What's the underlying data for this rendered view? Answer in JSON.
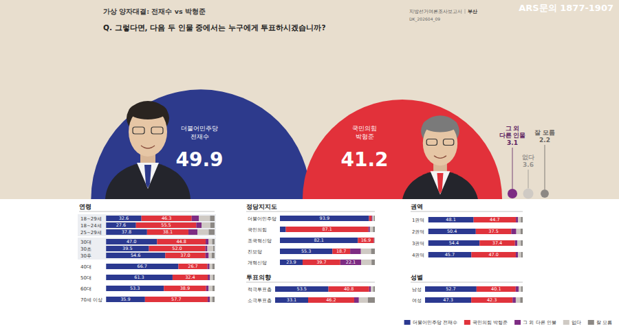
{
  "header": {
    "report": "지방선거여론조사보고서",
    "region": "부산",
    "code": "DK_202604_09",
    "contact": "ARS문의 1877-1907"
  },
  "chart_data": [
    {
      "type": "bubble",
      "title": "가상 양자대결: 전재수 vs 박형준",
      "subtitle": "Q. 그렇다면, 다음 두 인물 중에서는 누구에게 투표하시겠습니까?",
      "categories": [
        "더불어민주당 전재수",
        "국민의힘 박형준",
        "그 외 다른 인물",
        "없다",
        "잘 모름"
      ],
      "values": [
        49.9,
        41.2,
        3.1,
        3.6,
        2.2
      ],
      "colors": [
        "#2d3a8c",
        "#e2313a",
        "#7d2c83",
        "#cfcac4",
        "#8c8884"
      ],
      "data_labels": true,
      "tick_labels": false
    },
    {
      "type": "bar",
      "orientation": "horizontal",
      "stacked": true,
      "data_labels": true,
      "tick_labels": "y",
      "legend": "bottom-right",
      "xlim": [
        0,
        100
      ],
      "series": [
        {
          "name": "더불어민주당 전재수",
          "color": "#2b3990"
        },
        {
          "name": "국민의힘 박형준",
          "color": "#e0333c"
        },
        {
          "name": "그 외 다른 인물",
          "color": "#7d2c83"
        },
        {
          "name": "없다",
          "color": "#cfcac4"
        },
        {
          "name": "잘 모름",
          "color": "#8c8884"
        }
      ],
      "panels": [
        {
          "title": "연령",
          "categories": [
            "18~29세",
            "18~24세",
            "25~29세",
            "30대",
            "30초",
            "30후",
            "40대",
            "50대",
            "60대",
            "70세 이상"
          ],
          "values": [
            [
              32.6,
              46.3,
              6.7,
              10.2,
              4.2
            ],
            [
              27.6,
              55.5,
              5.0,
              8.0,
              3.9
            ],
            [
              37.8,
              38.1,
              8.3,
              10.4,
              5.4
            ],
            [
              47.0,
              44.8,
              2.5,
              3.5,
              2.2
            ],
            [
              39.5,
              52.0,
              1.9,
              5.4,
              1.2
            ],
            [
              54.6,
              37.0,
              3.0,
              2.8,
              2.6
            ],
            [
              66.7,
              26.7,
              2.0,
              2.5,
              2.1
            ],
            [
              61.3,
              32.4,
              2.1,
              2.6,
              1.6
            ],
            [
              53.3,
              38.9,
              2.3,
              3.6,
              1.9
            ],
            [
              35.9,
              57.7,
              2.0,
              2.3,
              2.1
            ]
          ]
        },
        {
          "title": "정당지지도",
          "categories": [
            "더불어민주당",
            "국민의힘",
            "조국혁신당",
            "진보당",
            "개혁신당"
          ],
          "values": [
            [
              93.9,
              2.6,
              1.0,
              1.5,
              1.0
            ],
            [
              6.2,
              87.1,
              1.5,
              3.2,
              2.0
            ],
            [
              82.1,
              16.9,
              0.3,
              0.4,
              0.3
            ],
            [
              55.3,
              18.7,
              11.3,
              10.7,
              4.0
            ],
            [
              23.9,
              39.7,
              22.1,
              10.8,
              3.5
            ]
          ]
        },
        {
          "title": "권역",
          "categories": [
            "1권역",
            "2권역",
            "3권역",
            "4권역"
          ],
          "values": [
            [
              48.1,
              44.7,
              2.2,
              3.0,
              2.0
            ],
            [
              50.4,
              37.5,
              5.3,
              4.6,
              2.2
            ],
            [
              54.4,
              37.4,
              2.6,
              3.6,
              2.0
            ],
            [
              45.7,
              47.0,
              2.4,
              3.1,
              1.8
            ]
          ]
        },
        {
          "title": "투표의향",
          "categories": [
            "적극투표층",
            "소극투표층"
          ],
          "values": [
            [
              53.5,
              40.8,
              1.8,
              2.4,
              1.5
            ],
            [
              33.1,
              46.2,
              4.7,
              9.0,
              7.0
            ]
          ]
        },
        {
          "title": "성별",
          "categories": [
            "남성",
            "여성"
          ],
          "values": [
            [
              52.7,
              40.1,
              3.0,
              2.6,
              1.6
            ],
            [
              47.3,
              42.3,
              3.3,
              4.5,
              2.6
            ]
          ]
        }
      ]
    }
  ]
}
